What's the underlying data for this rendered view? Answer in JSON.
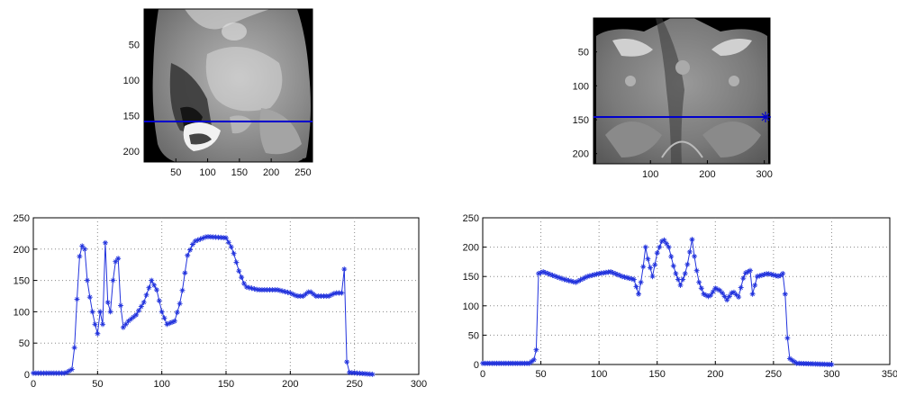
{
  "chart_data": [
    {
      "type": "image",
      "id": "ct-left",
      "xticks": [
        50,
        100,
        150,
        200,
        250
      ],
      "yticks": [
        50,
        100,
        150,
        200
      ],
      "xlim": [
        0,
        265
      ],
      "ylim": [
        215,
        0
      ],
      "profile_line_y": 160,
      "colors": {
        "line": "#0000cc"
      }
    },
    {
      "type": "image",
      "id": "ct-right",
      "xticks": [
        100,
        200,
        300
      ],
      "yticks": [
        50,
        100,
        150,
        200
      ],
      "xlim": [
        0,
        310
      ],
      "ylim": [
        215,
        0
      ],
      "profile_line_y": 160,
      "colors": {
        "line": "#0000cc"
      }
    },
    {
      "type": "line",
      "id": "profile-left",
      "xlim": [
        0,
        300
      ],
      "ylim": [
        0,
        250
      ],
      "xticks": [
        0,
        50,
        100,
        150,
        200,
        250,
        300
      ],
      "yticks": [
        0,
        50,
        100,
        150,
        200,
        250
      ],
      "grid": true,
      "marker": "*",
      "color": "#2233dd",
      "keypoints": [
        [
          0,
          2
        ],
        [
          25,
          2
        ],
        [
          30,
          8
        ],
        [
          33,
          60
        ],
        [
          35,
          180
        ],
        [
          38,
          205
        ],
        [
          40,
          200
        ],
        [
          42,
          150
        ],
        [
          45,
          110
        ],
        [
          48,
          80
        ],
        [
          50,
          65
        ],
        [
          52,
          100
        ],
        [
          54,
          80
        ],
        [
          56,
          210
        ],
        [
          57,
          120
        ],
        [
          59,
          110
        ],
        [
          60,
          100
        ],
        [
          62,
          150
        ],
        [
          64,
          180
        ],
        [
          66,
          185
        ],
        [
          68,
          110
        ],
        [
          70,
          75
        ],
        [
          74,
          85
        ],
        [
          80,
          95
        ],
        [
          86,
          115
        ],
        [
          92,
          150
        ],
        [
          96,
          135
        ],
        [
          100,
          100
        ],
        [
          104,
          80
        ],
        [
          110,
          85
        ],
        [
          115,
          120
        ],
        [
          120,
          190
        ],
        [
          125,
          212
        ],
        [
          135,
          220
        ],
        [
          150,
          218
        ],
        [
          155,
          200
        ],
        [
          160,
          165
        ],
        [
          165,
          140
        ],
        [
          175,
          135
        ],
        [
          190,
          135
        ],
        [
          200,
          130
        ],
        [
          205,
          125
        ],
        [
          210,
          125
        ],
        [
          215,
          133
        ],
        [
          220,
          125
        ],
        [
          230,
          125
        ],
        [
          235,
          130
        ],
        [
          240,
          130
        ],
        [
          242,
          168
        ],
        [
          243,
          70
        ],
        [
          244,
          20
        ],
        [
          246,
          3
        ],
        [
          265,
          0
        ]
      ]
    },
    {
      "type": "line",
      "id": "profile-right",
      "xlim": [
        0,
        350
      ],
      "ylim": [
        0,
        250
      ],
      "xticks": [
        0,
        50,
        100,
        150,
        200,
        250,
        300,
        350
      ],
      "yticks": [
        0,
        50,
        100,
        150,
        200,
        250
      ],
      "grid": true,
      "marker": "*",
      "color": "#2233dd",
      "keypoints": [
        [
          0,
          2
        ],
        [
          40,
          2
        ],
        [
          44,
          8
        ],
        [
          46,
          25
        ],
        [
          48,
          155
        ],
        [
          52,
          158
        ],
        [
          60,
          152
        ],
        [
          70,
          145
        ],
        [
          80,
          140
        ],
        [
          90,
          150
        ],
        [
          100,
          155
        ],
        [
          110,
          158
        ],
        [
          120,
          150
        ],
        [
          130,
          145
        ],
        [
          134,
          120
        ],
        [
          137,
          150
        ],
        [
          140,
          200
        ],
        [
          142,
          180
        ],
        [
          146,
          150
        ],
        [
          150,
          190
        ],
        [
          155,
          215
        ],
        [
          160,
          200
        ],
        [
          165,
          160
        ],
        [
          170,
          135
        ],
        [
          175,
          160
        ],
        [
          180,
          213
        ],
        [
          183,
          170
        ],
        [
          186,
          140
        ],
        [
          190,
          120
        ],
        [
          195,
          115
        ],
        [
          200,
          130
        ],
        [
          205,
          125
        ],
        [
          210,
          110
        ],
        [
          215,
          125
        ],
        [
          220,
          115
        ],
        [
          225,
          155
        ],
        [
          230,
          160
        ],
        [
          232,
          120
        ],
        [
          236,
          150
        ],
        [
          245,
          155
        ],
        [
          255,
          150
        ],
        [
          258,
          155
        ],
        [
          260,
          120
        ],
        [
          262,
          45
        ],
        [
          264,
          10
        ],
        [
          270,
          2
        ],
        [
          300,
          0
        ]
      ]
    }
  ]
}
